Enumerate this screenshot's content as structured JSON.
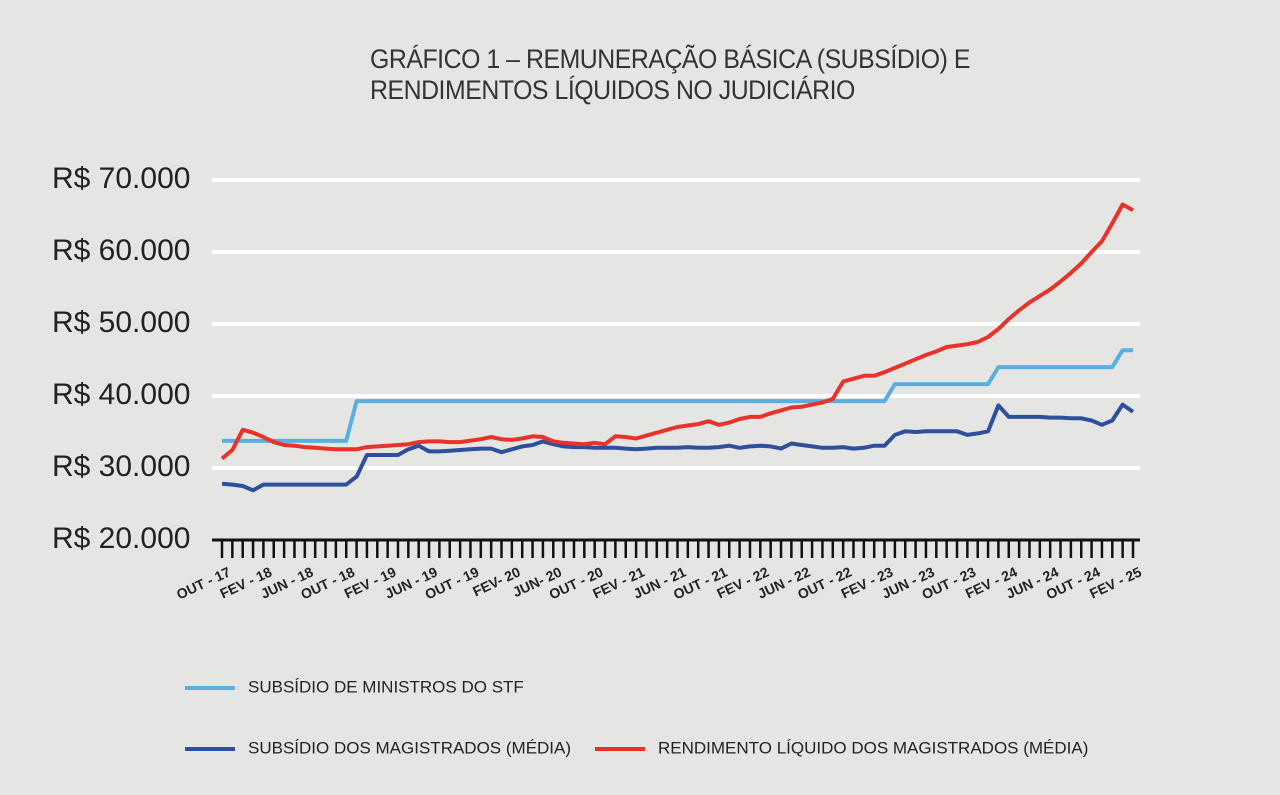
{
  "chart_data": {
    "type": "line",
    "title": "GRÁFICO 1 – REMUNERAÇÃO BÁSICA (SUBSÍDIO) E RENDIMENTOS LÍQUIDOS NO JUDICIÁRIO",
    "categories": [
      "OUT - 17",
      null,
      null,
      null,
      "FEV - 18",
      null,
      null,
      null,
      "JUN - 18",
      null,
      null,
      null,
      "OUT - 18",
      null,
      null,
      null,
      "FEV - 19",
      null,
      null,
      null,
      "JUN - 19",
      null,
      null,
      null,
      "OUT - 19",
      null,
      null,
      null,
      "FEV- 20",
      null,
      null,
      null,
      "JUN- 20",
      null,
      null,
      null,
      "OUT - 20",
      null,
      null,
      null,
      "FEV - 21",
      null,
      null,
      null,
      "JUN - 21",
      null,
      null,
      null,
      "OUT - 21",
      null,
      null,
      null,
      "FEV - 22",
      null,
      null,
      null,
      "JUN - 22",
      null,
      null,
      null,
      "OUT - 22",
      null,
      null,
      null,
      "FEV - 23",
      null,
      null,
      null,
      "JUN - 23",
      null,
      null,
      null,
      "OUT - 23",
      null,
      null,
      null,
      "FEV - 24",
      null,
      null,
      null,
      "JUN - 24",
      null,
      null,
      null,
      "OUT - 24",
      null,
      null,
      null,
      "FEV - 25"
    ],
    "series": [
      {
        "name": "SUBSÍDIO DE MINISTROS DO STF",
        "color": "#5aaee0",
        "values": [
          33763,
          33763,
          33763,
          33763,
          33763,
          33763,
          33763,
          33763,
          33763,
          33763,
          33763,
          33763,
          33763,
          39293,
          39293,
          39293,
          39293,
          39293,
          39293,
          39293,
          39293,
          39293,
          39293,
          39293,
          39293,
          39293,
          39293,
          39293,
          39293,
          39293,
          39293,
          39293,
          39293,
          39293,
          39293,
          39293,
          39293,
          39293,
          39293,
          39293,
          39293,
          39293,
          39293,
          39293,
          39293,
          39293,
          39293,
          39293,
          39293,
          39293,
          39293,
          39293,
          39293,
          39293,
          39293,
          39293,
          39293,
          39293,
          39293,
          39293,
          39293,
          39293,
          39293,
          39293,
          39293,
          41650,
          41650,
          41650,
          41650,
          41650,
          41650,
          41650,
          41650,
          41650,
          41650,
          44008,
          44008,
          44008,
          44008,
          44008,
          44008,
          44008,
          44008,
          44008,
          44008,
          44008,
          44008,
          46366,
          46366
        ]
      },
      {
        "name": "SUBSÍDIO DOS MAGISTRADOS (MÉDIA)",
        "color": "#2e4f9c",
        "values": [
          27800,
          27700,
          27500,
          26900,
          27700,
          27700,
          27700,
          27700,
          27700,
          27700,
          27700,
          27700,
          27700,
          28800,
          31800,
          31800,
          31800,
          31800,
          32600,
          33100,
          32300,
          32300,
          32400,
          32500,
          32600,
          32700,
          32700,
          32200,
          32600,
          33000,
          33200,
          33700,
          33300,
          33000,
          32900,
          32900,
          32800,
          32800,
          32800,
          32700,
          32600,
          32700,
          32800,
          32800,
          32800,
          32900,
          32800,
          32800,
          32900,
          33100,
          32800,
          33000,
          33100,
          33000,
          32700,
          33400,
          33200,
          33000,
          32800,
          32800,
          32900,
          32700,
          32800,
          33100,
          33100,
          34600,
          35100,
          35000,
          35100,
          35100,
          35100,
          35100,
          34600,
          34800,
          35100,
          38700,
          37100,
          37100,
          37100,
          37100,
          37000,
          37000,
          36900,
          36900,
          36600,
          36000,
          36600,
          38800,
          37800
        ]
      },
      {
        "name": "RENDIMENTO LÍQUIDO DOS MAGISTRADOS (MÉDIA)",
        "color": "#e8322a",
        "values": [
          31300,
          32500,
          35300,
          34900,
          34300,
          33600,
          33200,
          33100,
          32900,
          32800,
          32700,
          32600,
          32600,
          32600,
          32900,
          33000,
          33100,
          33200,
          33300,
          33600,
          33700,
          33700,
          33600,
          33600,
          33800,
          34000,
          34300,
          34000,
          33900,
          34100,
          34400,
          34300,
          33700,
          33500,
          33400,
          33300,
          33500,
          33300,
          34400,
          34300,
          34100,
          34500,
          34900,
          35300,
          35700,
          35900,
          36100,
          36500,
          36000,
          36300,
          36800,
          37100,
          37100,
          37600,
          38000,
          38400,
          38500,
          38800,
          39100,
          39600,
          42000,
          42400,
          42800,
          42800,
          43300,
          43900,
          44500,
          45100,
          45700,
          46200,
          46800,
          47000,
          47200,
          47500,
          48200,
          49300,
          50700,
          51900,
          53000,
          53900,
          54800,
          55900,
          57100,
          58400,
          60000,
          61500,
          64000,
          66600,
          65800
        ]
      }
    ],
    "ylim": [
      20000,
      70000
    ],
    "yticks": [
      {
        "value": 20000,
        "label": "R$ 20.000"
      },
      {
        "value": 30000,
        "label": "R$ 30.000"
      },
      {
        "value": 40000,
        "label": "R$ 40.000"
      },
      {
        "value": 50000,
        "label": "R$ 50.000"
      },
      {
        "value": 60000,
        "label": "R$ 60.000"
      },
      {
        "value": 70000,
        "label": "R$ 70.000"
      }
    ],
    "grid": true
  }
}
